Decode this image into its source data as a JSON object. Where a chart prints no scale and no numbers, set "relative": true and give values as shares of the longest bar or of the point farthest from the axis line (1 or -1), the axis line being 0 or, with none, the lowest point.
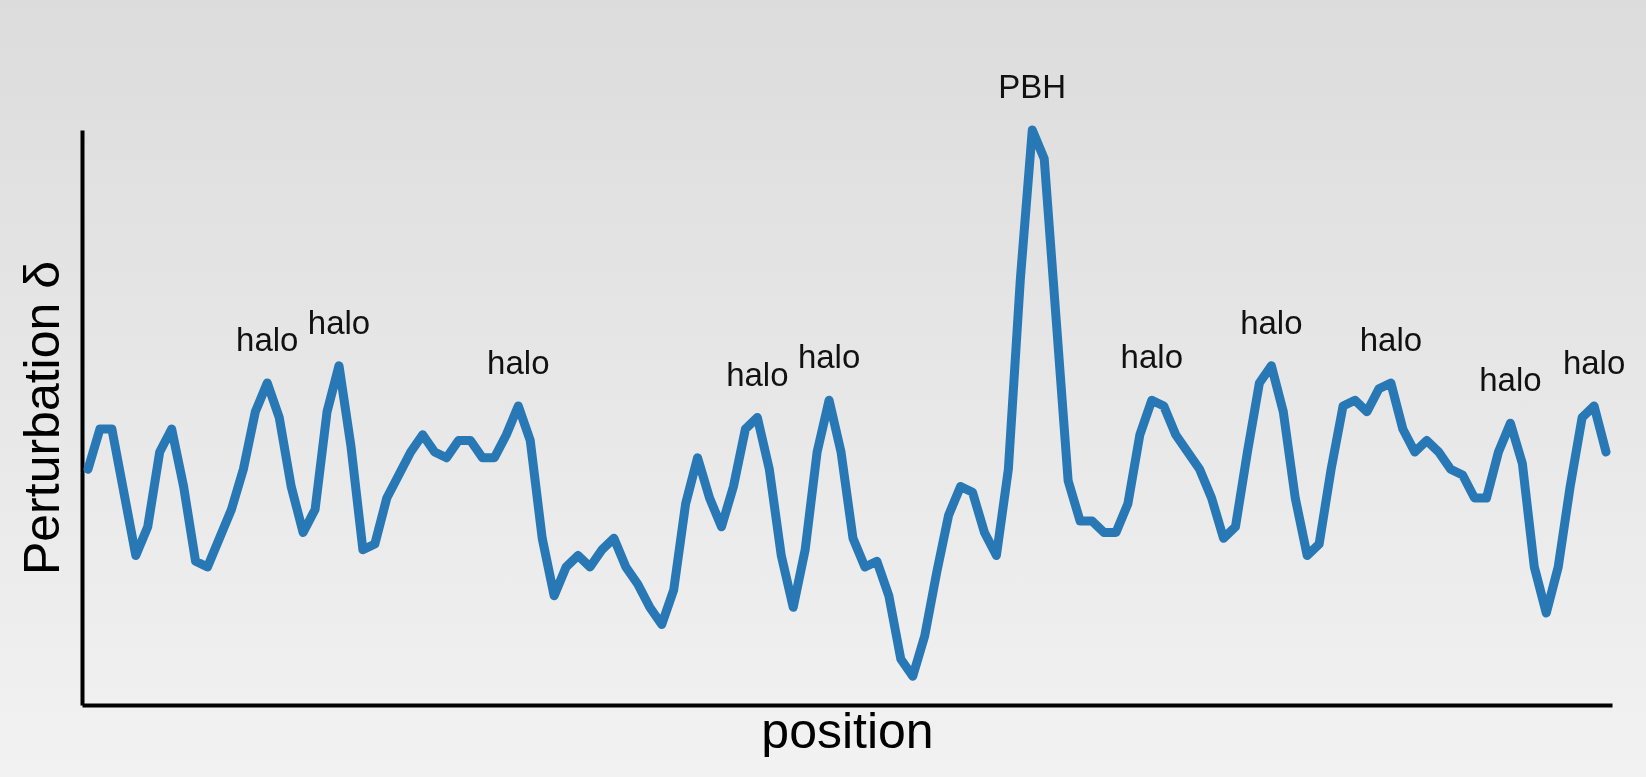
{
  "chart_data": {
    "type": "line",
    "relative": true,
    "xlabel": "position",
    "ylabel": "Perturbation δ",
    "line_style": "solid",
    "categories": [
      null,
      null,
      null,
      null,
      null,
      null,
      null,
      null,
      null,
      null,
      null,
      null,
      null,
      null,
      null,
      null,
      null,
      null,
      null,
      null,
      null,
      null,
      null,
      null,
      null,
      null,
      null,
      null,
      null,
      null,
      null,
      null,
      null,
      null,
      null,
      null,
      null,
      null,
      null,
      null,
      null,
      null,
      null,
      null,
      null,
      null,
      null,
      null,
      null,
      null,
      null,
      null,
      null,
      null,
      null,
      null,
      null,
      null,
      null,
      null,
      null,
      null,
      null,
      null,
      null,
      null,
      null,
      null,
      null,
      null,
      null,
      null,
      null,
      null,
      null,
      null,
      null,
      null,
      null,
      null,
      null,
      null,
      null,
      null,
      null,
      null,
      null,
      null,
      null,
      null,
      null,
      null,
      null,
      null,
      null,
      null,
      null,
      null,
      null,
      null,
      null,
      null,
      null,
      null,
      null,
      null,
      null,
      null,
      null,
      null,
      null,
      null,
      null,
      null,
      null,
      null,
      null,
      null,
      null,
      null,
      null,
      null,
      null,
      null,
      null,
      null,
      null,
      null
    ],
    "series": [
      {
        "color": "#2878b5",
        "values": [
          0.41,
          0.48,
          0.48,
          0.37,
          0.26,
          0.31,
          0.44,
          0.48,
          0.38,
          0.25,
          0.24,
          0.29,
          0.34,
          0.41,
          0.51,
          0.56,
          0.5,
          0.38,
          0.3,
          0.34,
          0.51,
          0.59,
          0.45,
          0.27,
          0.28,
          0.36,
          0.4,
          0.44,
          0.47,
          0.44,
          0.43,
          0.46,
          0.46,
          0.43,
          0.43,
          0.47,
          0.52,
          0.46,
          0.29,
          0.19,
          0.24,
          0.26,
          0.24,
          0.27,
          0.29,
          0.24,
          0.21,
          0.17,
          0.14,
          0.2,
          0.35,
          0.43,
          0.36,
          0.31,
          0.38,
          0.48,
          0.5,
          0.41,
          0.26,
          0.17,
          0.27,
          0.44,
          0.53,
          0.44,
          0.29,
          0.24,
          0.25,
          0.19,
          0.08,
          0.05,
          0.12,
          0.23,
          0.33,
          0.38,
          0.37,
          0.3,
          0.26,
          0.41,
          0.74,
          1,
          0.95,
          0.67,
          0.39,
          0.32,
          0.32,
          0.3,
          0.3,
          0.35,
          0.47,
          0.53,
          0.52,
          0.47,
          0.44,
          0.41,
          0.36,
          0.29,
          0.31,
          0.44,
          0.56,
          0.59,
          0.51,
          0.36,
          0.26,
          0.28,
          0.41,
          0.52,
          0.53,
          0.51,
          0.55,
          0.56,
          0.48,
          0.44,
          0.46,
          0.44,
          0.41,
          0.4,
          0.36,
          0.36,
          0.44,
          0.49,
          0.42,
          0.24,
          0.16,
          0.24,
          0.38,
          0.5,
          0.52,
          0.44
        ]
      }
    ],
    "annotations": [
      "halo",
      "halo",
      "halo",
      "halo",
      "halo",
      "PBH",
      "halo",
      "halo",
      "halo",
      "halo",
      "halo"
    ]
  }
}
